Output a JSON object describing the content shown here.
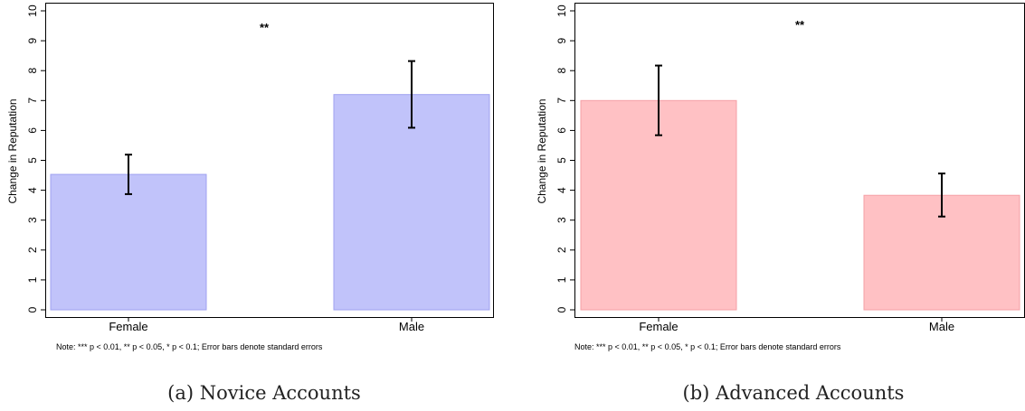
{
  "figure": {
    "note": "Note: *** p < 0.01, ** p < 0.05, * p < 0.1; Error bars denote standard errors"
  },
  "chart_data": [
    {
      "type": "bar",
      "caption": "(a) Novice Accounts",
      "categories": [
        "Female",
        "Male"
      ],
      "values": [
        4.53,
        7.2
      ],
      "error_low": [
        3.87,
        6.09
      ],
      "error_high": [
        5.19,
        8.32
      ],
      "ylabel": "Change in Reputation",
      "xlabel": "",
      "ylim": [
        0,
        10
      ],
      "yticks": [
        0,
        1,
        2,
        3,
        4,
        5,
        6,
        7,
        8,
        9,
        10
      ],
      "significance": "**",
      "bar_color": "#c1c3fa",
      "bar_edge": "#9fa2f0",
      "grid": false
    },
    {
      "type": "bar",
      "caption": "(b) Advanced Accounts",
      "categories": [
        "Female",
        "Male"
      ],
      "values": [
        7.0,
        3.83
      ],
      "error_low": [
        5.84,
        3.12
      ],
      "error_high": [
        8.17,
        4.56
      ],
      "ylabel": "Change in Reputation",
      "xlabel": "",
      "ylim": [
        0,
        10
      ],
      "yticks": [
        0,
        1,
        2,
        3,
        4,
        5,
        6,
        7,
        8,
        9,
        10
      ],
      "significance": "**",
      "bar_color": "#ffc1c4",
      "bar_edge": "#f5a0a6",
      "grid": false
    }
  ]
}
